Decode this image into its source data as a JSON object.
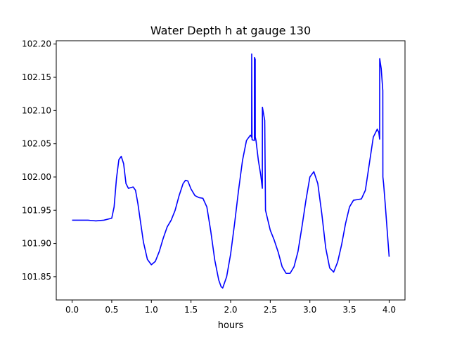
{
  "chart_data": {
    "type": "line",
    "title": "Water Depth h at gauge 130",
    "xlabel": "hours",
    "ylabel": "",
    "xlim": [
      -0.2,
      4.2
    ],
    "ylim": [
      101.815,
      102.205
    ],
    "xticks": [
      0.0,
      0.5,
      1.0,
      1.5,
      2.0,
      2.5,
      3.0,
      3.5,
      4.0
    ],
    "xtick_labels": [
      "0.0",
      "0.5",
      "1.0",
      "1.5",
      "2.0",
      "2.5",
      "3.0",
      "3.5",
      "4.0"
    ],
    "yticks": [
      101.85,
      101.9,
      101.95,
      102.0,
      102.05,
      102.1,
      102.15,
      102.2
    ],
    "ytick_labels": [
      "101.85",
      "101.90",
      "101.95",
      "102.00",
      "102.05",
      "102.10",
      "102.15",
      "102.20"
    ],
    "grid": false,
    "series": [
      {
        "name": "",
        "color": "#0000ff",
        "x": [
          0.0,
          0.1,
          0.2,
          0.3,
          0.4,
          0.5,
          0.53,
          0.56,
          0.59,
          0.62,
          0.65,
          0.68,
          0.71,
          0.74,
          0.77,
          0.8,
          0.83,
          0.86,
          0.9,
          0.95,
          1.0,
          1.05,
          1.1,
          1.15,
          1.2,
          1.25,
          1.3,
          1.35,
          1.4,
          1.43,
          1.46,
          1.5,
          1.55,
          1.6,
          1.65,
          1.7,
          1.75,
          1.8,
          1.85,
          1.88,
          1.9,
          1.95,
          2.0,
          2.05,
          2.1,
          2.15,
          2.2,
          2.25,
          2.265,
          2.266,
          2.27,
          2.271,
          2.3,
          2.301,
          2.31,
          2.311,
          2.32,
          2.35,
          2.38,
          2.4,
          2.401,
          2.43,
          2.431,
          2.44,
          2.5,
          2.55,
          2.6,
          2.65,
          2.7,
          2.75,
          2.8,
          2.85,
          2.9,
          2.95,
          3.0,
          3.05,
          3.1,
          3.15,
          3.2,
          3.25,
          3.3,
          3.35,
          3.4,
          3.45,
          3.5,
          3.55,
          3.6,
          3.65,
          3.7,
          3.75,
          3.8,
          3.85,
          3.87,
          3.88,
          3.881,
          3.9,
          3.92,
          3.921,
          3.93,
          3.95,
          4.0
        ],
        "y": [
          101.935,
          101.935,
          101.935,
          101.934,
          101.935,
          101.938,
          101.955,
          101.998,
          102.026,
          102.031,
          102.02,
          101.99,
          101.983,
          101.984,
          101.985,
          101.98,
          101.96,
          101.935,
          101.902,
          101.876,
          101.868,
          101.873,
          101.888,
          101.908,
          101.925,
          101.935,
          101.95,
          101.972,
          101.99,
          101.995,
          101.994,
          101.982,
          101.972,
          101.969,
          101.968,
          101.955,
          101.918,
          101.875,
          101.845,
          101.835,
          101.833,
          101.85,
          101.884,
          101.93,
          101.98,
          102.025,
          102.055,
          102.063,
          102.06,
          102.185,
          102.06,
          102.056,
          102.055,
          102.18,
          102.177,
          102.06,
          102.055,
          102.025,
          102.003,
          101.983,
          102.105,
          102.085,
          102.075,
          101.95,
          101.92,
          101.905,
          101.887,
          101.865,
          101.855,
          101.855,
          101.865,
          101.888,
          101.925,
          101.965,
          102.0,
          102.008,
          101.99,
          101.945,
          101.893,
          101.863,
          101.857,
          101.872,
          101.898,
          101.93,
          101.955,
          101.965,
          101.966,
          101.967,
          101.98,
          102.02,
          102.06,
          102.072,
          102.067,
          102.057,
          102.178,
          102.163,
          102.13,
          102.0,
          101.99,
          101.96,
          101.88
        ]
      }
    ]
  }
}
